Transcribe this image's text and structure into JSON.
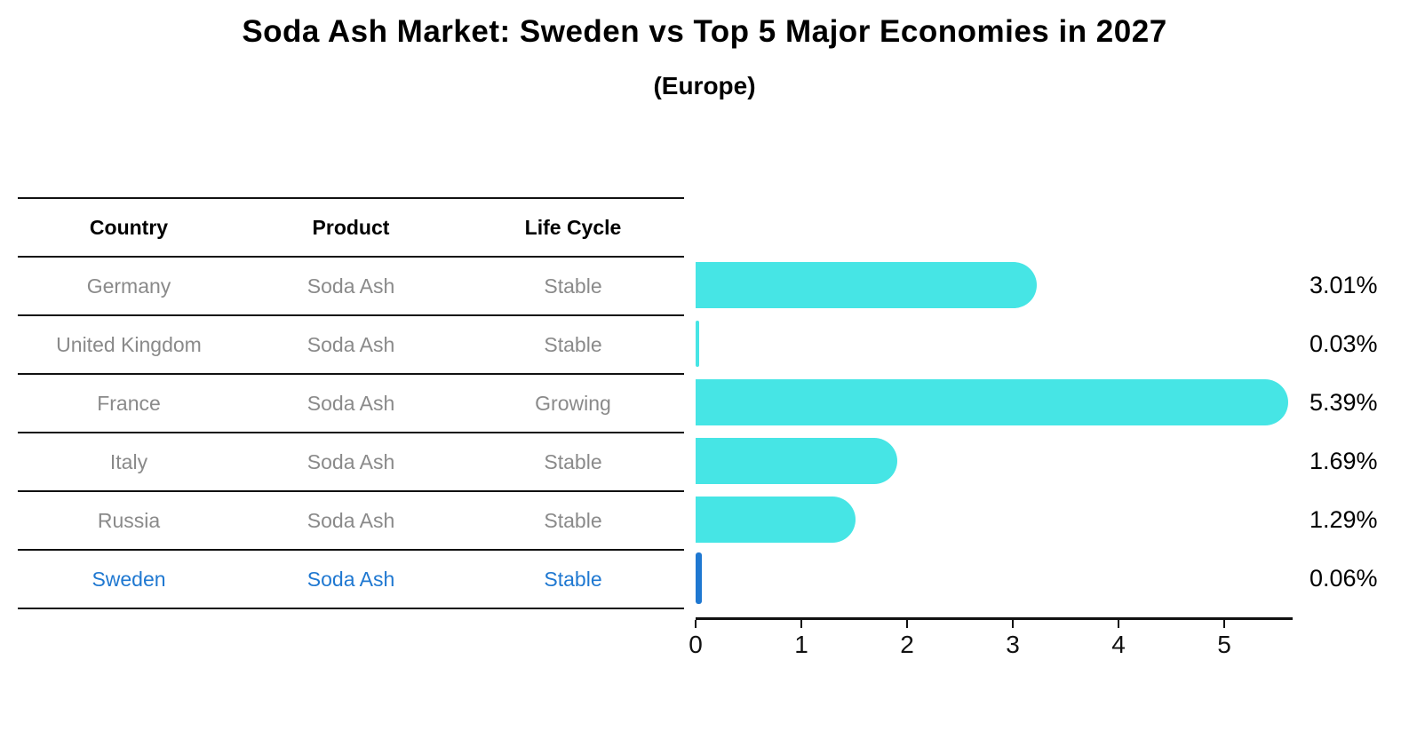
{
  "title": "Soda Ash Market: Sweden vs Top 5 Major Economies in 2027",
  "subtitle": "(Europe)",
  "table": {
    "headers": [
      "Country",
      "Product",
      "Life Cycle"
    ],
    "rows": [
      {
        "country": "Germany",
        "product": "Soda Ash",
        "life_cycle": "Stable",
        "highlight": false
      },
      {
        "country": "United Kingdom",
        "product": "Soda Ash",
        "life_cycle": "Stable",
        "highlight": false
      },
      {
        "country": "France",
        "product": "Soda Ash",
        "life_cycle": "Growing",
        "highlight": false
      },
      {
        "country": "Italy",
        "product": "Soda Ash",
        "life_cycle": "Stable",
        "highlight": false
      },
      {
        "country": "Russia",
        "product": "Soda Ash",
        "life_cycle": "Stable",
        "highlight": false
      },
      {
        "country": "Sweden",
        "product": "Soda Ash",
        "life_cycle": "Stable",
        "highlight": true
      }
    ]
  },
  "chart_data": {
    "type": "bar",
    "orientation": "horizontal",
    "title": "Soda Ash Market: Sweden vs Top 5 Major Economies in 2027",
    "subtitle": "(Europe)",
    "categories": [
      "Germany",
      "United Kingdom",
      "France",
      "Italy",
      "Russia",
      "Sweden"
    ],
    "values": [
      3.01,
      0.03,
      5.39,
      1.69,
      1.29,
      0.06
    ],
    "value_labels": [
      "3.01%",
      "0.03%",
      "5.39%",
      "1.69%",
      "1.29%",
      "0.06%"
    ],
    "x_ticks": [
      "0",
      "1",
      "2",
      "3",
      "4",
      "5"
    ],
    "xlim": [
      0,
      5.65
    ],
    "grid": false,
    "legend": false,
    "bar_color": "#46e5e5",
    "highlight_color": "#1f78d1",
    "highlight_index": 5
  },
  "colors": {
    "bar": "#46e5e5",
    "highlight_blue": "#1f78d1",
    "row_text_gray": "#8a8a8a",
    "line_black": "#111111",
    "background": "#ffffff"
  }
}
